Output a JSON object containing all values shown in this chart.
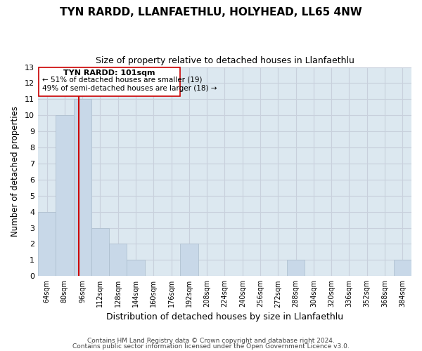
{
  "title": "TYN RARDD, LLANFAETHLU, HOLYHEAD, LL65 4NW",
  "subtitle": "Size of property relative to detached houses in Llanfaethlu",
  "xlabel": "Distribution of detached houses by size in Llanfaethlu",
  "ylabel": "Number of detached properties",
  "footer_line1": "Contains HM Land Registry data © Crown copyright and database right 2024.",
  "footer_line2": "Contains public sector information licensed under the Open Government Licence v3.0.",
  "bin_labels": [
    "64sqm",
    "80sqm",
    "96sqm",
    "112sqm",
    "128sqm",
    "144sqm",
    "160sqm",
    "176sqm",
    "192sqm",
    "208sqm",
    "224sqm",
    "240sqm",
    "256sqm",
    "272sqm",
    "288sqm",
    "304sqm",
    "320sqm",
    "336sqm",
    "352sqm",
    "368sqm",
    "384sqm"
  ],
  "bar_values": [
    4,
    10,
    11,
    3,
    2,
    1,
    0,
    0,
    2,
    0,
    0,
    0,
    0,
    0,
    1,
    0,
    0,
    0,
    0,
    0,
    1
  ],
  "bar_color": "#c8d8e8",
  "bar_edge_color": "#aabccc",
  "red_line_color": "#cc0000",
  "annotation_title": "TYN RARDD: 101sqm",
  "annotation_line1": "← 51% of detached houses are smaller (19)",
  "annotation_line2": "49% of semi-detached houses are larger (18) →",
  "annotation_box_color": "#ffffff",
  "annotation_box_edge": "#cc0000",
  "ylim": [
    0,
    13
  ],
  "yticks": [
    0,
    1,
    2,
    3,
    4,
    5,
    6,
    7,
    8,
    9,
    10,
    11,
    12,
    13
  ],
  "grid_color": "#c8d0dc",
  "bg_color": "#ffffff",
  "plot_bg_color": "#dce8f0"
}
